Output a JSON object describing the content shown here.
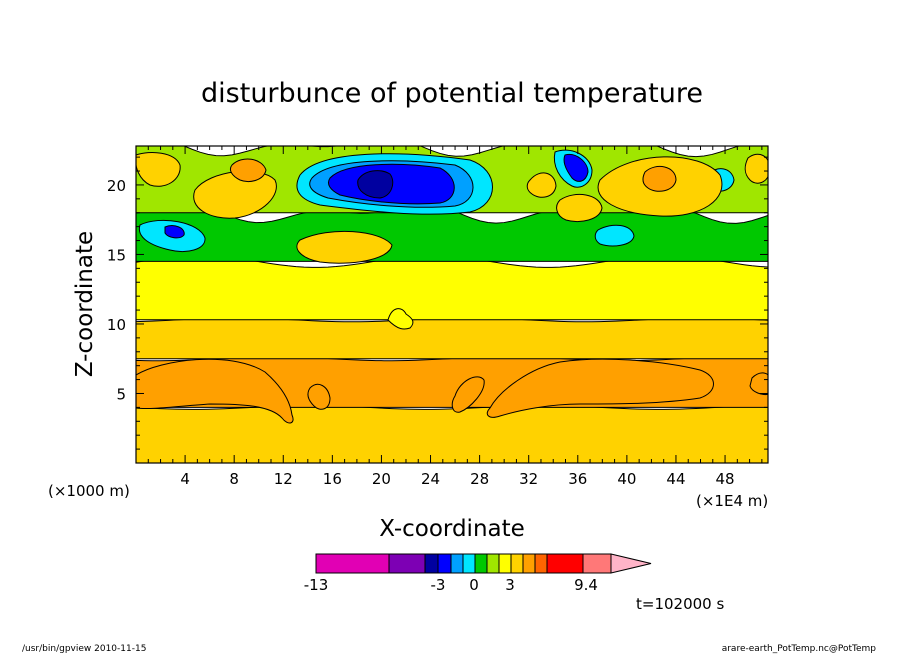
{
  "chart_data": {
    "type": "heatmap",
    "title": "disturbunce of potential temperature",
    "xlabel": "X-coordinate",
    "ylabel": "Z-coordinate",
    "x_unit_left": "(×1000 m)",
    "x_unit_right": "(×1E4 m)",
    "xlim": [
      0,
      51.5
    ],
    "ylim": [
      0,
      22.8
    ],
    "x_ticks": [
      4,
      8,
      12,
      16,
      20,
      24,
      28,
      32,
      36,
      40,
      44,
      48
    ],
    "y_ticks": [
      5,
      10,
      15,
      20
    ],
    "colorbar": {
      "labels": [
        "-13",
        "-3",
        "0",
        "3",
        "9.4"
      ],
      "colors": [
        "#e100b4",
        "#7d00b4",
        "#0000a0",
        "#0000ff",
        "#00a0ff",
        "#00e6ff",
        "#00c800",
        "#a0e600",
        "#ffff00",
        "#ffd200",
        "#ffa000",
        "#ff6400",
        "#ff0000",
        "#ff7878",
        "#ffb4c8"
      ]
    },
    "time_label": "t=102000 s",
    "bands": [
      {
        "z_from": 0,
        "z_to": 4,
        "color": "#ffd200"
      },
      {
        "z_from": 4,
        "z_to": 7.5,
        "color": "#ffa000"
      },
      {
        "z_from": 7.5,
        "z_to": 10.3,
        "color": "#ffd200"
      },
      {
        "z_from": 10.3,
        "z_to": 14.5,
        "color": "#ffff00"
      },
      {
        "z_from": 14.5,
        "z_to": 18,
        "color": "#00c800"
      },
      {
        "z_from": 18,
        "z_to": 22.8,
        "color": "#a0e600"
      }
    ]
  },
  "footer": {
    "left": "/usr/bin/gpview  2010-11-15",
    "right": "arare-earth_PotTemp.nc@PotTemp"
  }
}
